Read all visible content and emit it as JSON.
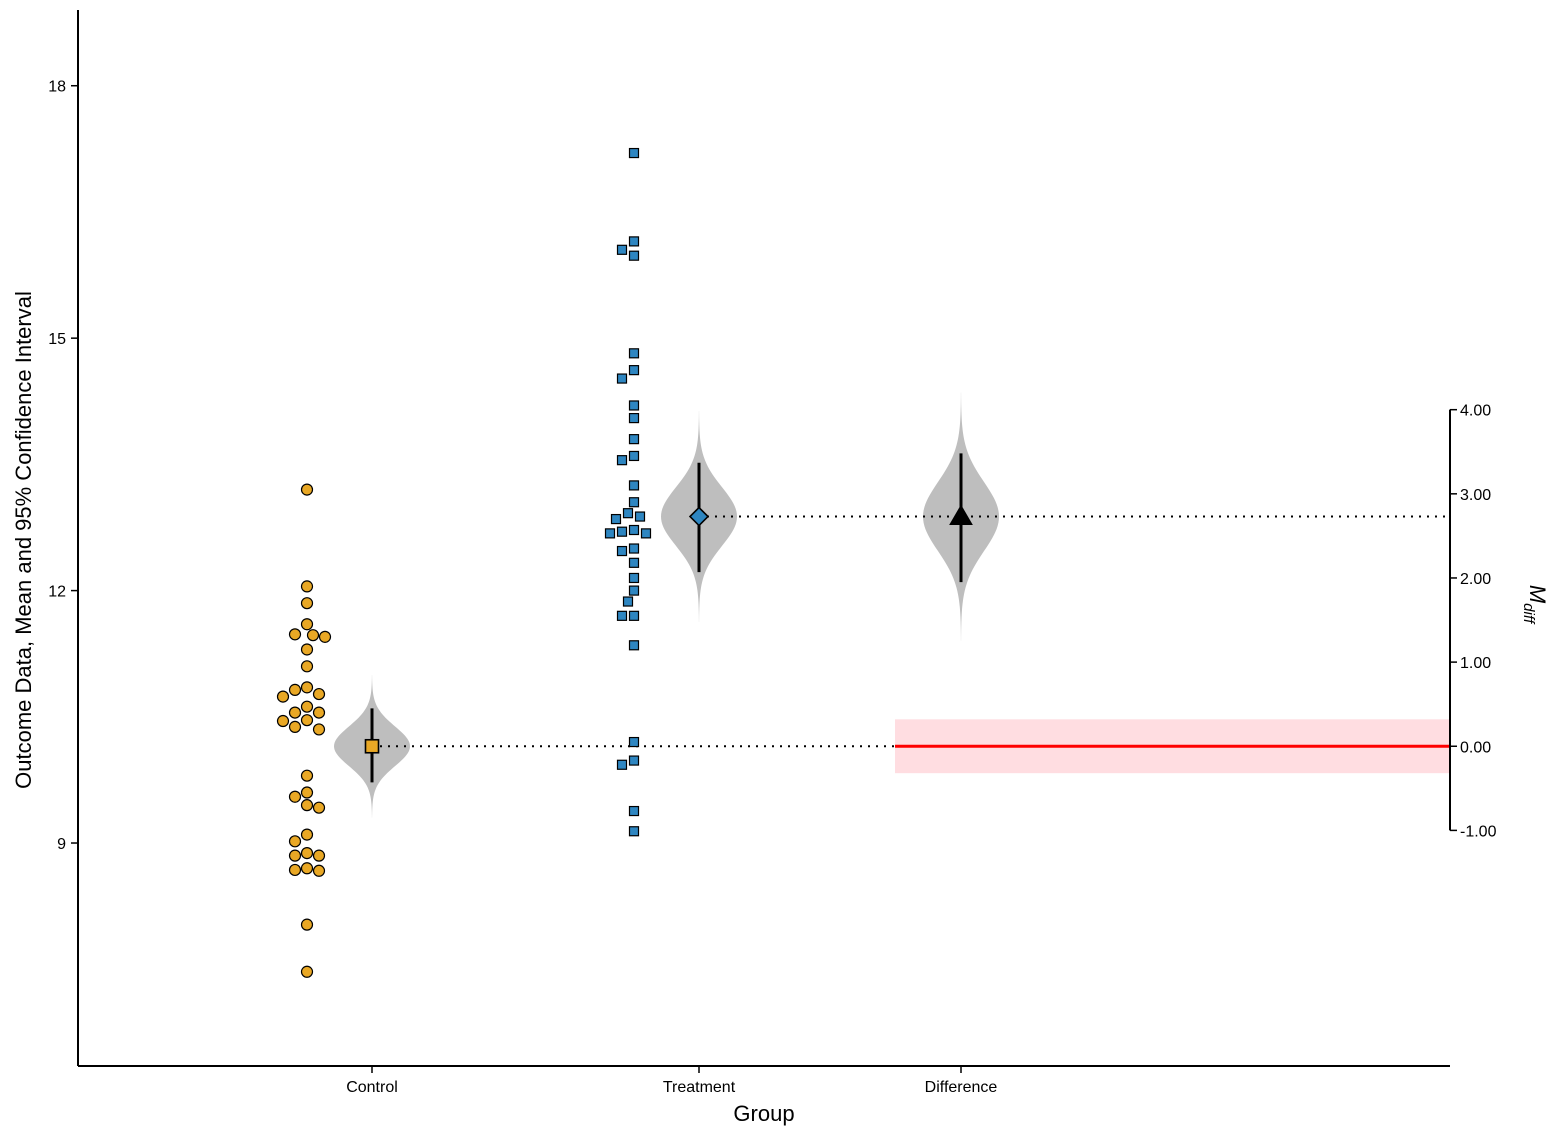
{
  "chart_data": {
    "type": "scatter",
    "title": "",
    "xlabel": "Group",
    "ylabel": "Outcome Data, Mean and 95% Confidence Interval",
    "y2label_main": "M",
    "y2label_sub": "diff",
    "categories": [
      "Control",
      "Treatment",
      "Difference"
    ],
    "ylim": [
      6.35,
      18.9
    ],
    "yticks": [
      9,
      12,
      15,
      18
    ],
    "y2ticks": [
      -1,
      0,
      1,
      2,
      3,
      4
    ],
    "y2tick_labels": [
      "-1.00",
      "0.00",
      "1.00",
      "2.00",
      "3.00",
      "4.00"
    ],
    "y2_zero_at_y": 10.15,
    "grid": false,
    "series": [
      {
        "name": "Control",
        "marker": "circle",
        "color": "#E9A825",
        "values": [
          13.2,
          12.05,
          11.85,
          11.6,
          11.48,
          11.47,
          11.45,
          11.3,
          11.1,
          10.85,
          10.82,
          10.77,
          10.74,
          10.62,
          10.55,
          10.55,
          10.46,
          10.45,
          10.38,
          10.35,
          9.8,
          9.6,
          9.55,
          9.45,
          9.42,
          9.1,
          9.02,
          8.88,
          8.85,
          8.85,
          8.7,
          8.68,
          8.67,
          8.03,
          7.47
        ]
      },
      {
        "name": "Treatment",
        "marker": "square",
        "color": "#2E86C1",
        "values": [
          17.2,
          16.15,
          16.05,
          15.98,
          14.82,
          14.62,
          14.52,
          14.2,
          14.05,
          13.8,
          13.6,
          13.55,
          13.25,
          13.05,
          12.92,
          12.88,
          12.85,
          12.72,
          12.7,
          12.68,
          12.68,
          12.5,
          12.47,
          12.33,
          12.15,
          12.0,
          11.87,
          11.7,
          11.7,
          11.35,
          10.2,
          9.98,
          9.93,
          9.38,
          9.14
        ]
      }
    ],
    "summaries": [
      {
        "category": "Control",
        "marker": "square",
        "color": "#E9A825",
        "mean": 10.15,
        "ci": [
          9.72,
          10.6
        ]
      },
      {
        "category": "Treatment",
        "marker": "diamond",
        "color": "#2E86C1",
        "mean": 12.88,
        "ci": [
          12.22,
          13.52
        ]
      },
      {
        "category": "Difference",
        "marker": "triangle",
        "color": "#000000",
        "mean": 2.73,
        "ci": [
          1.95,
          3.48
        ]
      }
    ],
    "reference_band": {
      "value": 0,
      "lower": -0.32,
      "upper": 0.32,
      "line_color": "#FF0000",
      "band_color": "#FFDDE1"
    },
    "violin_color": "#BEBEBE"
  }
}
